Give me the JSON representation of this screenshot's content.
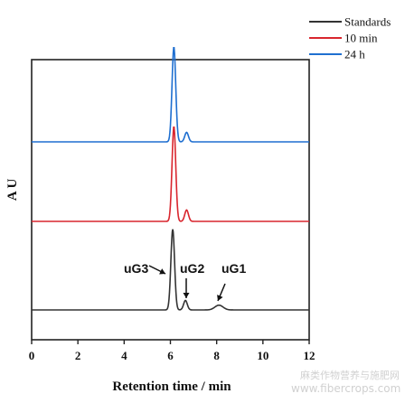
{
  "chart_data": {
    "type": "line",
    "title": "",
    "xlabel": "Retention time / min",
    "ylabel": "A U",
    "xlim": [
      0,
      12
    ],
    "xticks": [
      "0",
      "2",
      "4",
      "6",
      "8",
      "10",
      "12"
    ],
    "grid": false,
    "legend_position": "top-right",
    "stacked_offset": true,
    "series": [
      {
        "name": "Standards",
        "color": "#333333",
        "baseline_au": 0,
        "peaks": [
          {
            "time_min": 6.1,
            "height_au": 0.85
          },
          {
            "time_min": 6.65,
            "height_au": 0.1
          },
          {
            "time_min": 8.1,
            "height_au": 0.05
          }
        ]
      },
      {
        "name": "10 min",
        "color": "#d9262e",
        "baseline_au": 1,
        "peaks": [
          {
            "time_min": 6.15,
            "height_au": 1.0
          },
          {
            "time_min": 6.7,
            "height_au": 0.12
          }
        ]
      },
      {
        "name": "24 h",
        "color": "#1f6fd0",
        "baseline_au": 2,
        "peaks": [
          {
            "time_min": 6.15,
            "height_au": 1.0
          },
          {
            "time_min": 6.7,
            "height_au": 0.1
          }
        ]
      }
    ],
    "annotations": [
      {
        "text": "uG3",
        "target_time_min": 6.1
      },
      {
        "text": "uG2",
        "target_time_min": 6.65
      },
      {
        "text": "uG1",
        "target_time_min": 8.1
      }
    ]
  },
  "watermark": {
    "line1": "麻类作物营养与施肥网",
    "line2": "www.fibercrops.com"
  }
}
